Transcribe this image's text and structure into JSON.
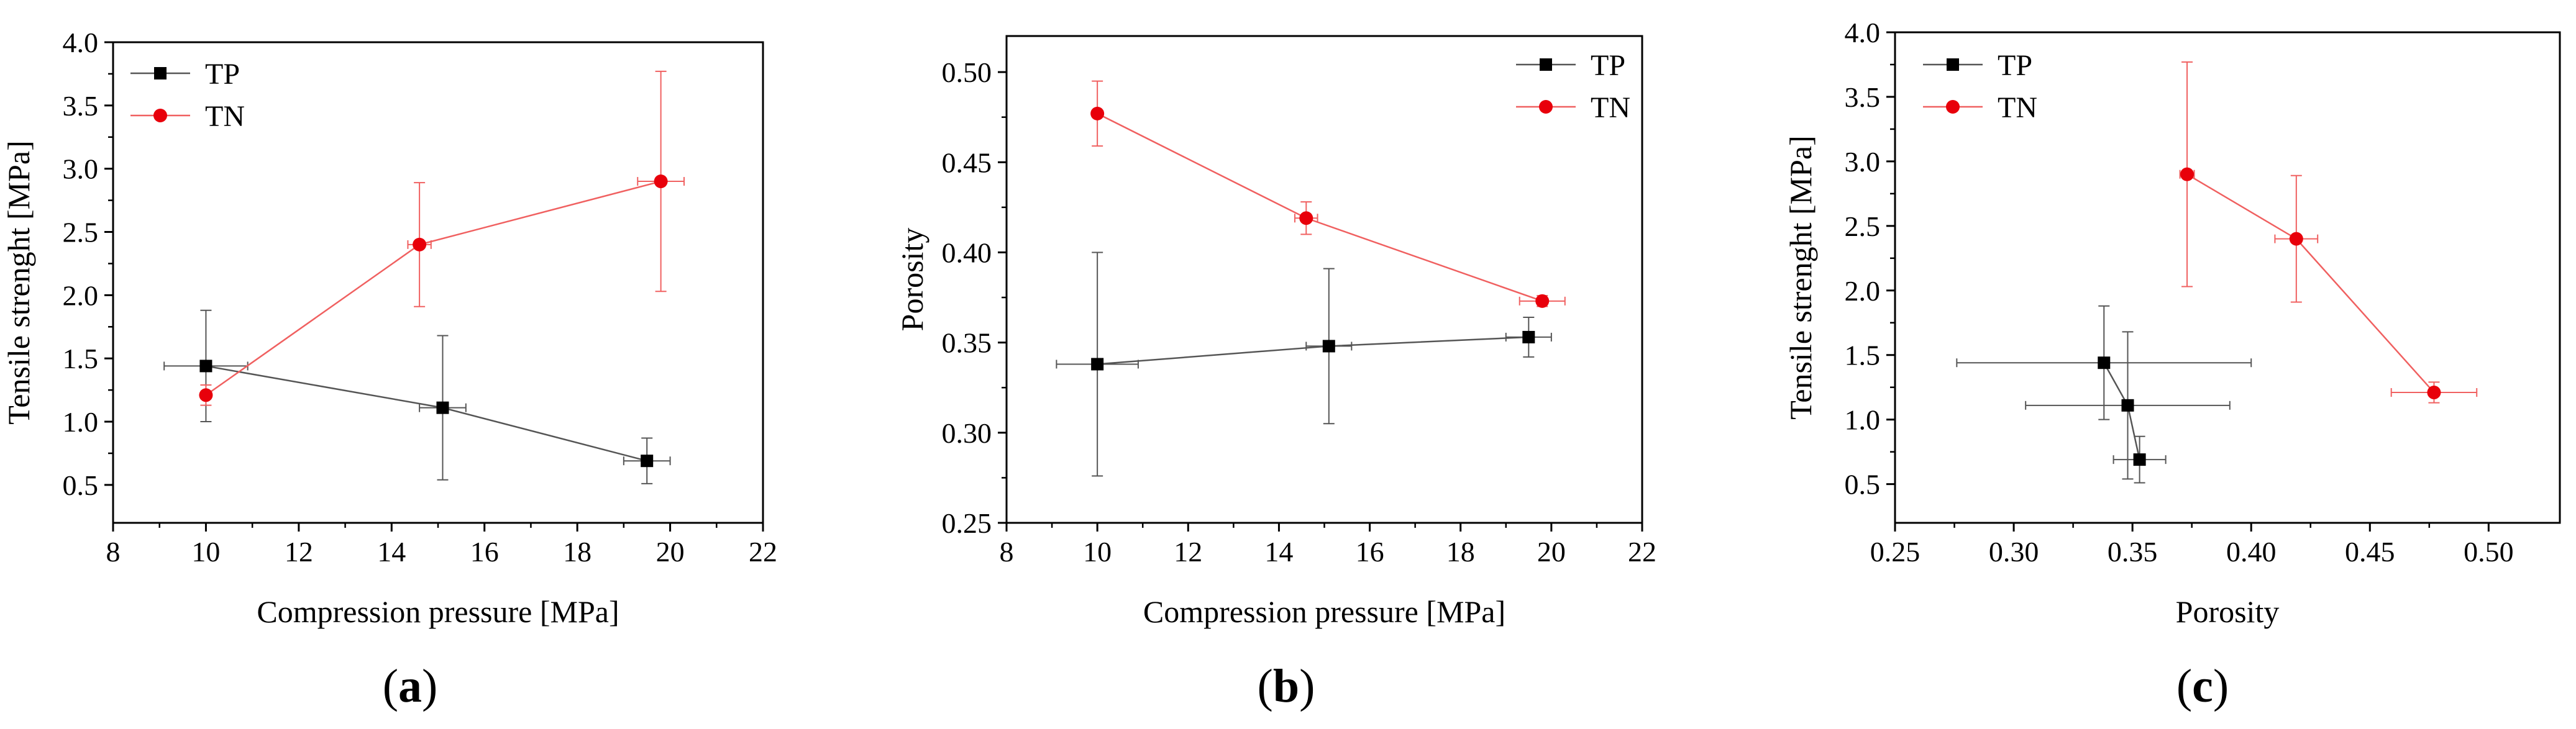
{
  "figure": {
    "panels": [
      "a",
      "b",
      "c"
    ]
  },
  "colors": {
    "TP": "#000000",
    "TN": "#e8000b",
    "TP_line": "#555555",
    "TN_line": "#f06060"
  },
  "chart_data": [
    {
      "id": "a",
      "panel_label": "a",
      "type": "scatter",
      "title": "",
      "xlabel": "Compression pressure [MPa]",
      "ylabel": "Tensile strenght [MPa]",
      "xlim": [
        8,
        22
      ],
      "ylim": [
        0.2,
        4.0
      ],
      "xticks": [
        8,
        10,
        12,
        14,
        16,
        18,
        20,
        22
      ],
      "yticks": [
        0.5,
        1.0,
        1.5,
        2.0,
        2.5,
        3.0,
        3.5,
        4.0
      ],
      "xtick_labels": [
        "8",
        "10",
        "12",
        "14",
        "16",
        "18",
        "20",
        "22"
      ],
      "ytick_labels": [
        "0.5",
        "1.0",
        "1.5",
        "2.0",
        "2.5",
        "3.0",
        "3.5",
        "4.0"
      ],
      "legend": {
        "placement": "top-left",
        "entries": [
          "TP",
          "TN"
        ]
      },
      "series": [
        {
          "name": "TP",
          "marker": "square",
          "x": [
            10.0,
            15.1,
            19.5
          ],
          "y": [
            1.44,
            1.11,
            0.69
          ],
          "xerr": [
            0.9,
            0.5,
            0.5
          ],
          "yerr": [
            0.44,
            0.57,
            0.18
          ]
        },
        {
          "name": "TN",
          "marker": "circle",
          "x": [
            10.0,
            14.6,
            19.8
          ],
          "y": [
            1.21,
            2.4,
            2.9
          ],
          "xerr": [
            0.1,
            0.25,
            0.5
          ],
          "yerr": [
            0.08,
            0.49,
            0.87
          ]
        }
      ]
    },
    {
      "id": "b",
      "panel_label": "b",
      "type": "scatter",
      "title": "",
      "xlabel": "Compression pressure [MPa]",
      "ylabel": "Porosity",
      "xlim": [
        8,
        22
      ],
      "ylim": [
        0.25,
        0.52
      ],
      "xticks": [
        8,
        10,
        12,
        14,
        16,
        18,
        20,
        22
      ],
      "yticks": [
        0.25,
        0.3,
        0.35,
        0.4,
        0.45,
        0.5
      ],
      "xtick_labels": [
        "8",
        "10",
        "12",
        "14",
        "16",
        "18",
        "20",
        "22"
      ],
      "ytick_labels": [
        "0.25",
        "0.30",
        "0.35",
        "0.40",
        "0.45",
        "0.50"
      ],
      "legend": {
        "placement": "top-right",
        "entries": [
          "TP",
          "TN"
        ]
      },
      "series": [
        {
          "name": "TP",
          "marker": "square",
          "x": [
            10.0,
            15.1,
            19.5
          ],
          "y": [
            0.338,
            0.348,
            0.353
          ],
          "xerr": [
            0.9,
            0.5,
            0.5
          ],
          "yerr": [
            0.062,
            0.043,
            0.011
          ]
        },
        {
          "name": "TN",
          "marker": "circle",
          "x": [
            10.0,
            14.6,
            19.8
          ],
          "y": [
            0.477,
            0.419,
            0.373
          ],
          "xerr": [
            0.1,
            0.25,
            0.5
          ],
          "yerr": [
            0.018,
            0.009,
            0.003
          ]
        }
      ]
    },
    {
      "id": "c",
      "panel_label": "c",
      "type": "scatter",
      "title": "",
      "xlabel": "Porosity",
      "ylabel": "Tensile strenght [MPa]",
      "xlim": [
        0.25,
        0.53
      ],
      "ylim": [
        0.2,
        4.0
      ],
      "xticks": [
        0.25,
        0.3,
        0.35,
        0.4,
        0.45,
        0.5
      ],
      "yticks": [
        0.5,
        1.0,
        1.5,
        2.0,
        2.5,
        3.0,
        3.5,
        4.0
      ],
      "xtick_labels": [
        "0.25",
        "0.30",
        "0.35",
        "0.40",
        "0.45",
        "0.50"
      ],
      "ytick_labels": [
        "0.5",
        "1.0",
        "1.5",
        "2.0",
        "2.5",
        "3.0",
        "3.5",
        "4.0"
      ],
      "legend": {
        "placement": "top-left",
        "entries": [
          "TP",
          "TN"
        ]
      },
      "series": [
        {
          "name": "TP",
          "marker": "square",
          "x": [
            0.338,
            0.348,
            0.353
          ],
          "y": [
            1.44,
            1.11,
            0.69
          ],
          "xerr": [
            0.062,
            0.043,
            0.011
          ],
          "yerr": [
            0.44,
            0.57,
            0.18
          ]
        },
        {
          "name": "TN",
          "marker": "circle",
          "x": [
            0.373,
            0.419,
            0.477
          ],
          "y": [
            2.9,
            2.4,
            1.21
          ],
          "xerr": [
            0.003,
            0.009,
            0.018
          ],
          "yerr": [
            0.87,
            0.49,
            0.08
          ]
        }
      ]
    }
  ]
}
